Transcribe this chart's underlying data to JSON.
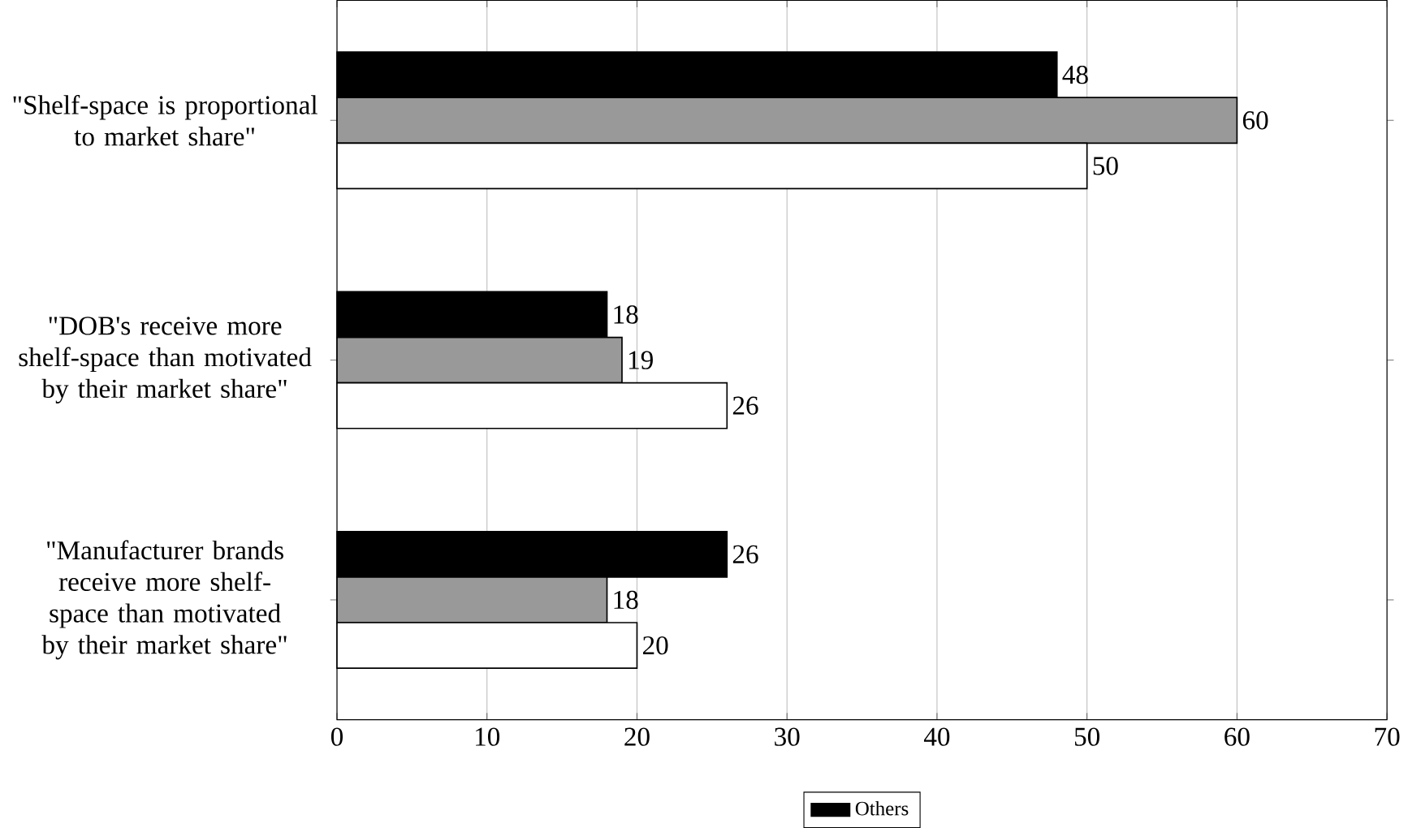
{
  "chart_data": {
    "type": "bar",
    "orientation": "horizontal",
    "categories": [
      "\"Shelf-space is proportional to market share\"",
      "\"DOB's receive more shelf-space than motivated by their market share\"",
      "\"Manufacturer brands receive more shelf-space than motivated by their market share\""
    ],
    "series": [
      {
        "name": "Others",
        "color": "#000000",
        "values": [
          48,
          18,
          26
        ]
      },
      {
        "color": "#999999",
        "values": [
          60,
          19,
          18
        ]
      },
      {
        "color": "#ffffff",
        "values": [
          50,
          26,
          20
        ]
      }
    ],
    "xlim": [
      0,
      70
    ],
    "xticks": [
      0,
      10,
      20,
      30,
      40,
      50,
      60,
      70
    ],
    "grid": "x",
    "legend": "bottom",
    "data_labels": true
  }
}
